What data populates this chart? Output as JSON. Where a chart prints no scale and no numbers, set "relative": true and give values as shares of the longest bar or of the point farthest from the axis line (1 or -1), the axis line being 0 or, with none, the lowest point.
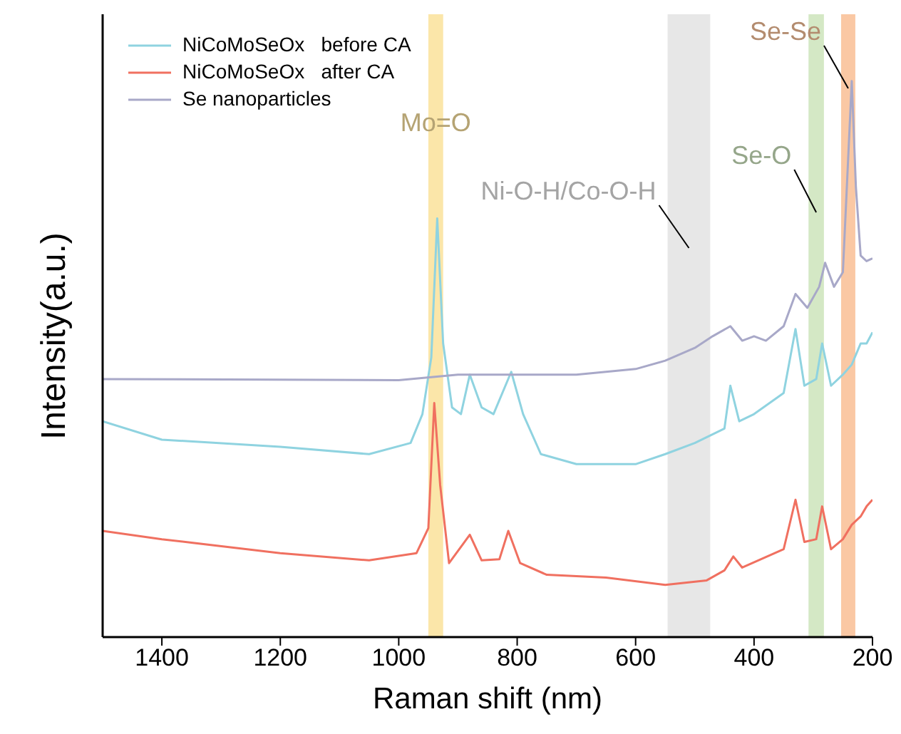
{
  "chart_data": {
    "type": "line",
    "relative": true,
    "xlabel": "Raman shift (nm)",
    "ylabel": "Intensity(a.u.)",
    "xlim": [
      1500,
      200
    ],
    "xticks": [
      1400,
      1200,
      1000,
      800,
      600,
      400,
      200
    ],
    "tick_labels": "x",
    "grid": false,
    "legend": "top left",
    "marker": "none",
    "line_style": "solid",
    "series": [
      {
        "name": "NiCoMoSeOx   before CA",
        "color": "#8fd3e0",
        "x": [
          1500,
          1400,
          1200,
          1050,
          980,
          960,
          945,
          935,
          925,
          910,
          895,
          880,
          860,
          840,
          810,
          790,
          760,
          700,
          600,
          550,
          500,
          450,
          440,
          425,
          400,
          350,
          330,
          315,
          295,
          285,
          270,
          250,
          235,
          220,
          210,
          200
        ],
        "values": [
          0.388,
          0.355,
          0.342,
          0.329,
          0.349,
          0.401,
          0.503,
          0.753,
          0.528,
          0.413,
          0.401,
          0.472,
          0.413,
          0.401,
          0.477,
          0.401,
          0.329,
          0.311,
          0.311,
          0.329,
          0.349,
          0.375,
          0.452,
          0.388,
          0.401,
          0.439,
          0.554,
          0.452,
          0.464,
          0.528,
          0.452,
          0.472,
          0.49,
          0.528,
          0.528,
          0.548
        ]
      },
      {
        "name": "NiCoMoSeOx   after CA",
        "color": "#f07060",
        "x": [
          1500,
          1400,
          1200,
          1050,
          970,
          950,
          940,
          930,
          915,
          880,
          860,
          830,
          815,
          795,
          750,
          650,
          550,
          480,
          450,
          435,
          420,
          350,
          330,
          315,
          295,
          285,
          270,
          250,
          235,
          220,
          210,
          200
        ],
        "values": [
          0.191,
          0.176,
          0.151,
          0.138,
          0.151,
          0.196,
          0.421,
          0.273,
          0.133,
          0.184,
          0.138,
          0.14,
          0.191,
          0.133,
          0.112,
          0.107,
          0.094,
          0.102,
          0.12,
          0.145,
          0.125,
          0.158,
          0.247,
          0.171,
          0.176,
          0.235,
          0.158,
          0.176,
          0.202,
          0.217,
          0.235,
          0.247
        ]
      },
      {
        "name": "Se nanoparticles",
        "color": "#a8a8c8",
        "x": [
          1500,
          1000,
          900,
          700,
          600,
          550,
          500,
          470,
          440,
          420,
          400,
          380,
          350,
          330,
          310,
          290,
          280,
          265,
          250,
          240,
          235,
          228,
          220,
          210,
          200
        ],
        "values": [
          0.464,
          0.462,
          0.472,
          0.472,
          0.482,
          0.497,
          0.52,
          0.541,
          0.559,
          0.533,
          0.541,
          0.533,
          0.559,
          0.617,
          0.592,
          0.63,
          0.673,
          0.63,
          0.656,
          0.885,
          1.0,
          0.809,
          0.686,
          0.676,
          0.681
        ]
      }
    ],
    "bands": [
      {
        "axis": "x",
        "from": 950,
        "to": 925,
        "label": "Mo=O",
        "color": "#fbe3a0"
      },
      {
        "axis": "x",
        "from": 546,
        "to": 474,
        "label": "Ni-O-H/Co-O-H",
        "color": "#e4e4e4"
      },
      {
        "axis": "x",
        "from": 308,
        "to": 282,
        "label": "Se-O",
        "color": "#cfe6bf"
      },
      {
        "axis": "x",
        "from": 253,
        "to": 229,
        "label": "Se-Se",
        "color": "#f9c29a"
      }
    ]
  }
}
